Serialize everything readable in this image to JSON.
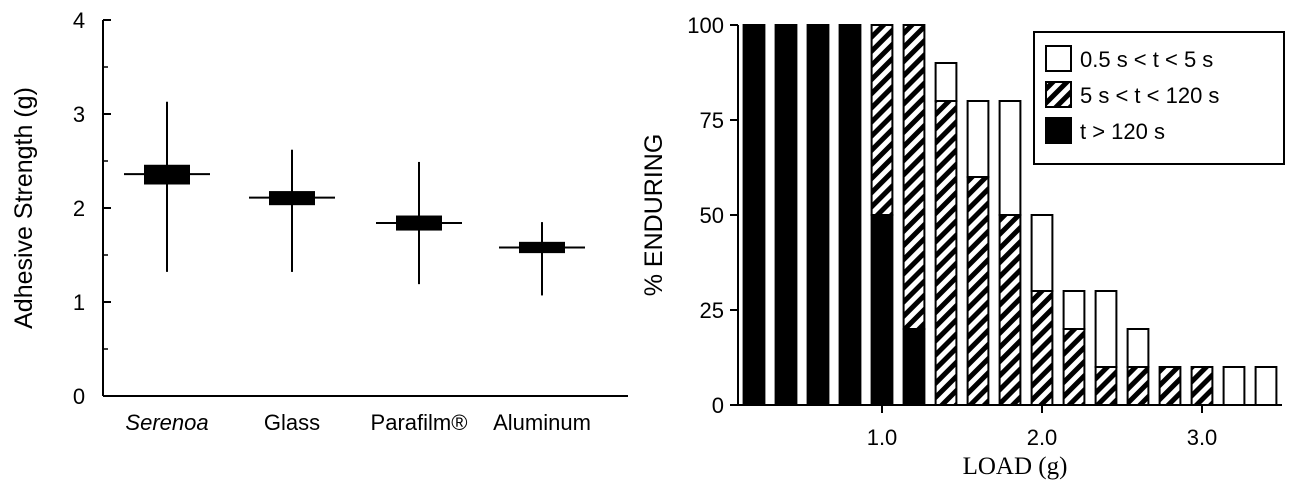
{
  "colors": {
    "ink": "#000000",
    "paper": "#ffffff"
  },
  "chart_data": [
    {
      "type": "box",
      "ylabel": "Adhesive Strength (g)",
      "ylim": [
        0,
        4
      ],
      "yticks": [
        "0",
        "1",
        "2",
        "3",
        "4"
      ],
      "categories": [
        "Serenoa",
        "Glass",
        "Parafilm®",
        "Aluminum"
      ],
      "italic_categories": [
        "Serenoa"
      ],
      "grid": false,
      "stats": [
        {
          "mean": 2.36,
          "box_low": 2.25,
          "box_high": 2.46,
          "min": 1.32,
          "max": 3.13
        },
        {
          "mean": 2.11,
          "box_low": 2.03,
          "box_high": 2.18,
          "min": 1.32,
          "max": 2.62
        },
        {
          "mean": 1.84,
          "box_low": 1.76,
          "box_high": 1.92,
          "min": 1.19,
          "max": 2.49
        },
        {
          "mean": 1.58,
          "box_low": 1.52,
          "box_high": 1.64,
          "min": 1.07,
          "max": 1.85
        }
      ]
    },
    {
      "type": "stacked_bar",
      "xlabel": "LOAD (g)",
      "ylabel": "% ENDURING",
      "ylim": [
        0,
        100
      ],
      "yticks": [
        "0",
        "25",
        "50",
        "75",
        "100"
      ],
      "xticks": [
        "1.0",
        "2.0",
        "3.0"
      ],
      "xtick_values": [
        1.0,
        2.0,
        3.0
      ],
      "xlim": [
        0.1,
        3.5
      ],
      "grid": false,
      "legend_position": "top-right",
      "x": [
        0.2,
        0.4,
        0.6,
        0.8,
        1.0,
        1.2,
        1.4,
        1.6,
        1.8,
        2.0,
        2.2,
        2.4,
        2.6,
        2.8,
        3.0,
        3.2,
        3.4
      ],
      "series": [
        {
          "name": "t > 120 s",
          "fill": "solid",
          "values": [
            100,
            100,
            100,
            100,
            50,
            20,
            0,
            0,
            0,
            0,
            0,
            0,
            0,
            0,
            0,
            0,
            0
          ]
        },
        {
          "name": "5 s < t < 120 s",
          "fill": "hatch",
          "values": [
            0,
            0,
            0,
            0,
            50,
            80,
            80,
            60,
            50,
            30,
            20,
            10,
            10,
            10,
            10,
            0,
            0
          ]
        },
        {
          "name": "0.5 s < t < 5 s",
          "fill": "open",
          "values": [
            0,
            0,
            0,
            0,
            0,
            0,
            10,
            20,
            30,
            20,
            10,
            20,
            10,
            0,
            0,
            10,
            10
          ]
        }
      ],
      "legend_order": [
        "0.5 s < t < 5 s",
        "5 s < t < 120 s",
        "t > 120 s"
      ]
    }
  ]
}
